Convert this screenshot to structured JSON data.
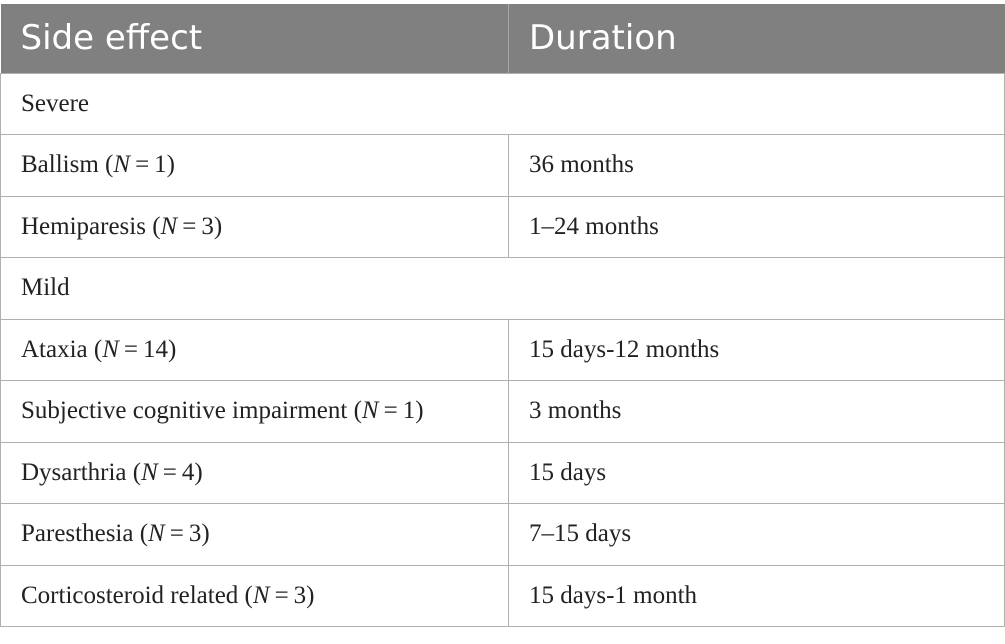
{
  "header": {
    "col1": "Side effect",
    "col2": "Duration"
  },
  "rows": [
    {
      "type": "section",
      "label": "Severe"
    },
    {
      "type": "item",
      "name": "Ballism",
      "n": "1",
      "duration": "36 months"
    },
    {
      "type": "item",
      "name": "Hemiparesis",
      "n": "3",
      "duration": "1–24 months"
    },
    {
      "type": "section",
      "label": "Mild"
    },
    {
      "type": "item",
      "name": "Ataxia",
      "n": "14",
      "duration": "15 days-12 months"
    },
    {
      "type": "item",
      "name": "Subjective cognitive impairment",
      "n": "1",
      "duration": "3 months"
    },
    {
      "type": "item",
      "name": "Dysarthria",
      "n": "4",
      "duration": "15 days"
    },
    {
      "type": "item",
      "name": "Paresthesia",
      "n": "3",
      "duration": "7–15 days"
    },
    {
      "type": "item",
      "name": "Corticosteroid related",
      "n": "3",
      "duration": "15 days-1 month"
    }
  ],
  "colors": {
    "header_bg": "#808080",
    "header_text": "#ffffff",
    "border": "#b0b0b0"
  }
}
